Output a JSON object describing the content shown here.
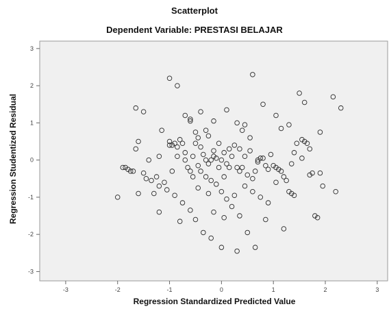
{
  "chart_data": {
    "type": "scatter",
    "title": "Scatterplot",
    "subtitle": "Dependent Variable: PRESTASI BELAJAR",
    "xlabel": "Regression Standardized Predicted Value",
    "ylabel": "Regression Studentized Residual",
    "xlim": [
      -3.5,
      3.2
    ],
    "ylim": [
      -3.25,
      3.2
    ],
    "xticks": [
      "-3",
      "-2",
      "-1",
      "0",
      "1",
      "2",
      "3"
    ],
    "yticks": [
      "-3",
      "-2",
      "-1",
      "0",
      "1",
      "2",
      "3"
    ],
    "grid": false,
    "colors": {
      "plot_background": "#f0f0f0",
      "marker": "#2a2a2a"
    },
    "points": [
      [
        -2.0,
        -1.0
      ],
      [
        -1.9,
        -0.2
      ],
      [
        -1.85,
        -0.2
      ],
      [
        -1.8,
        -0.25
      ],
      [
        -1.75,
        -0.3
      ],
      [
        -1.7,
        -0.3
      ],
      [
        -1.65,
        0.3
      ],
      [
        -1.6,
        -0.9
      ],
      [
        -1.6,
        0.5
      ],
      [
        -1.65,
        1.4
      ],
      [
        -1.5,
        1.3
      ],
      [
        -1.45,
        -0.5
      ],
      [
        -1.4,
        0.0
      ],
      [
        -1.35,
        -0.55
      ],
      [
        -1.3,
        -0.9
      ],
      [
        -1.2,
        -1.4
      ],
      [
        -1.2,
        0.1
      ],
      [
        -1.15,
        0.8
      ],
      [
        -1.1,
        -0.6
      ],
      [
        -1.0,
        0.5
      ],
      [
        -1.0,
        0.4
      ],
      [
        -0.95,
        0.4
      ],
      [
        -0.9,
        0.45
      ],
      [
        -0.85,
        0.35
      ],
      [
        -0.85,
        0.1
      ],
      [
        -0.8,
        0.55
      ],
      [
        -0.75,
        0.45
      ],
      [
        -0.7,
        0.2
      ],
      [
        -0.7,
        0.0
      ],
      [
        -0.65,
        -0.2
      ],
      [
        -0.6,
        -0.3
      ],
      [
        -0.55,
        0.1
      ],
      [
        -0.5,
        0.45
      ],
      [
        -0.45,
        0.6
      ],
      [
        -0.4,
        0.35
      ],
      [
        -0.35,
        0.15
      ],
      [
        -0.3,
        0.0
      ],
      [
        -0.25,
        -0.1
      ],
      [
        -0.2,
        0.0
      ],
      [
        -0.15,
        0.1
      ],
      [
        -0.1,
        0.05
      ],
      [
        -0.05,
        -0.2
      ],
      [
        0.0,
        0.0
      ],
      [
        0.05,
        0.2
      ],
      [
        0.1,
        -0.1
      ],
      [
        0.15,
        -0.2
      ],
      [
        0.2,
        0.1
      ],
      [
        0.25,
        0.4
      ],
      [
        0.3,
        -0.2
      ],
      [
        0.35,
        -0.3
      ],
      [
        0.4,
        -0.2
      ],
      [
        0.45,
        0.1
      ],
      [
        0.5,
        -0.4
      ],
      [
        0.55,
        0.25
      ],
      [
        0.6,
        -0.5
      ],
      [
        0.65,
        -0.3
      ],
      [
        0.7,
        0.0
      ],
      [
        0.75,
        0.05
      ],
      [
        0.8,
        0.05
      ],
      [
        0.85,
        -0.15
      ],
      [
        0.9,
        -0.25
      ],
      [
        0.95,
        0.15
      ],
      [
        1.0,
        -0.15
      ],
      [
        1.05,
        -0.2
      ],
      [
        1.1,
        -0.25
      ],
      [
        1.15,
        -0.3
      ],
      [
        1.2,
        -0.45
      ],
      [
        1.25,
        -0.55
      ],
      [
        1.3,
        -0.85
      ],
      [
        1.35,
        -0.9
      ],
      [
        1.4,
        -0.95
      ],
      [
        1.45,
        0.45
      ],
      [
        1.5,
        1.8
      ],
      [
        1.55,
        0.55
      ],
      [
        1.6,
        0.5
      ],
      [
        1.65,
        0.45
      ],
      [
        1.7,
        0.3
      ],
      [
        1.75,
        -0.35
      ],
      [
        1.8,
        -1.5
      ],
      [
        1.85,
        -1.55
      ],
      [
        1.9,
        0.75
      ],
      [
        1.95,
        -0.7
      ],
      [
        2.15,
        1.7
      ],
      [
        2.2,
        -0.85
      ],
      [
        2.3,
        1.4
      ],
      [
        -1.0,
        2.2
      ],
      [
        -0.85,
        2.0
      ],
      [
        -0.7,
        1.2
      ],
      [
        -0.6,
        1.1
      ],
      [
        -0.45,
        -0.15
      ],
      [
        -0.4,
        -0.3
      ],
      [
        -0.3,
        -0.45
      ],
      [
        -0.2,
        -0.55
      ],
      [
        -0.1,
        -0.65
      ],
      [
        0.0,
        -0.85
      ],
      [
        0.1,
        -1.05
      ],
      [
        0.2,
        -1.25
      ],
      [
        0.35,
        -1.5
      ],
      [
        0.5,
        -1.95
      ],
      [
        0.65,
        -2.35
      ],
      [
        0.0,
        -2.35
      ],
      [
        -0.2,
        -2.1
      ],
      [
        0.3,
        -2.45
      ],
      [
        -0.5,
        -1.6
      ],
      [
        -0.6,
        -1.35
      ],
      [
        -0.75,
        -1.15
      ],
      [
        -0.9,
        -0.95
      ],
      [
        -1.05,
        -0.8
      ],
      [
        -1.2,
        -0.7
      ],
      [
        -0.8,
        -1.65
      ],
      [
        -0.6,
        1.05
      ],
      [
        -0.4,
        1.3
      ],
      [
        -0.3,
        0.8
      ],
      [
        -0.15,
        1.05
      ],
      [
        0.1,
        1.35
      ],
      [
        0.3,
        1.0
      ],
      [
        0.45,
        0.95
      ],
      [
        0.6,
        2.3
      ],
      [
        0.8,
        1.5
      ],
      [
        1.05,
        1.2
      ],
      [
        1.15,
        0.85
      ],
      [
        1.3,
        0.95
      ],
      [
        0.55,
        0.6
      ],
      [
        0.4,
        0.8
      ],
      [
        0.15,
        0.3
      ],
      [
        -0.05,
        0.45
      ],
      [
        -0.25,
        0.65
      ],
      [
        -0.5,
        0.75
      ],
      [
        0.25,
        -0.95
      ],
      [
        0.45,
        -0.7
      ],
      [
        0.6,
        -0.85
      ],
      [
        0.75,
        -1.0
      ],
      [
        0.9,
        -1.15
      ],
      [
        1.05,
        -0.6
      ],
      [
        1.2,
        -1.85
      ],
      [
        0.85,
        -1.6
      ],
      [
        -0.35,
        -1.95
      ],
      [
        -0.15,
        -1.4
      ],
      [
        0.05,
        -1.55
      ],
      [
        -0.45,
        -0.75
      ],
      [
        -0.25,
        -0.9
      ],
      [
        -0.55,
        -0.45
      ],
      [
        -0.95,
        -0.3
      ],
      [
        -1.25,
        -0.45
      ],
      [
        -1.5,
        -0.35
      ],
      [
        -0.15,
        0.25
      ],
      [
        0.05,
        -0.45
      ],
      [
        0.35,
        0.3
      ],
      [
        0.7,
        -0.05
      ],
      [
        1.35,
        -0.1
      ],
      [
        1.7,
        -0.4
      ],
      [
        1.9,
        -0.35
      ],
      [
        1.6,
        1.55
      ],
      [
        1.55,
        0.05
      ],
      [
        1.4,
        0.2
      ]
    ]
  }
}
